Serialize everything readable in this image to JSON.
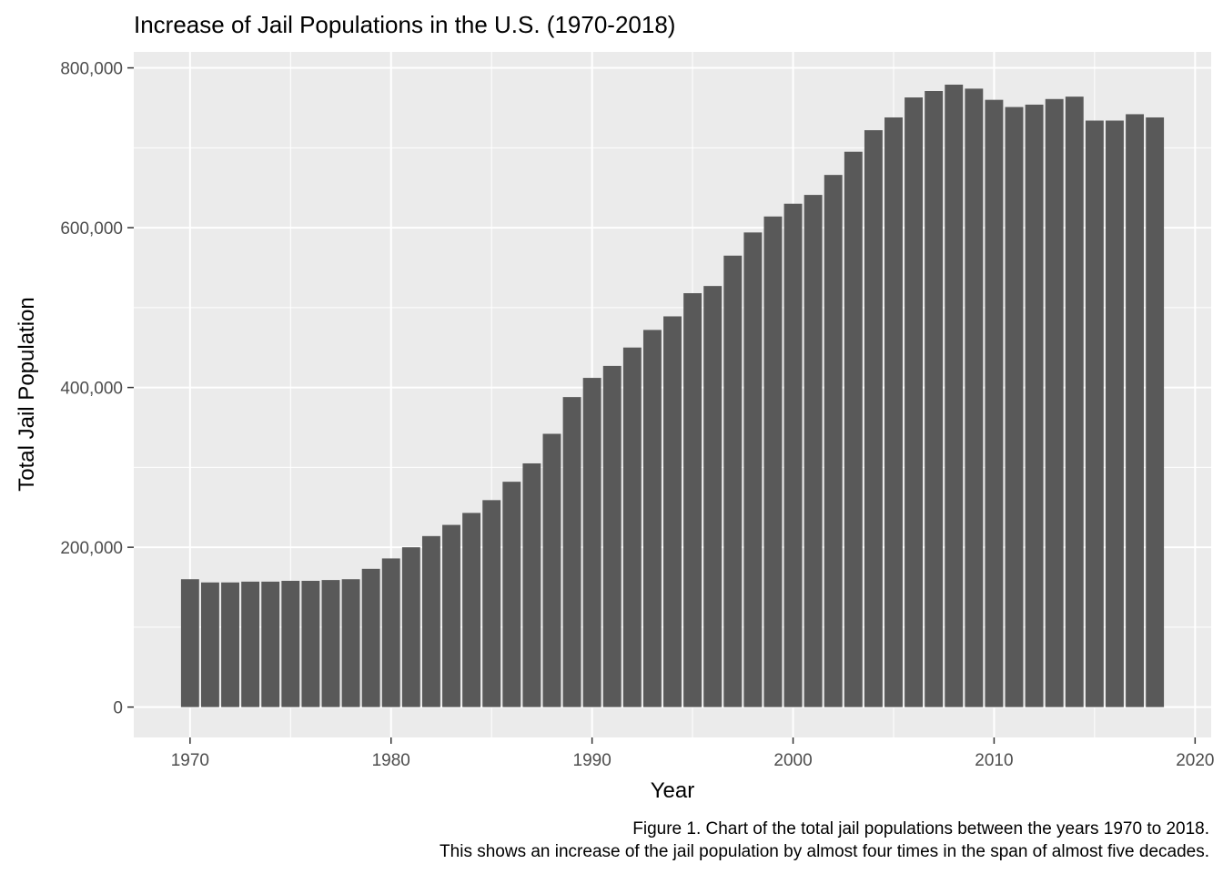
{
  "chart_data": {
    "type": "bar",
    "title": "Increase of Jail Populations in the U.S. (1970-2018)",
    "xlabel": "Year",
    "ylabel": "Total Jail Population",
    "caption": [
      "Figure 1. Chart of the total jail populations between the years 1970 to 2018.",
      "This shows an increase of the jail population by almost four times in the span of almost five decades."
    ],
    "xlim": [
      1967.2,
      2020.8
    ],
    "ylim": [
      -38000,
      820000
    ],
    "x_ticks": [
      1970,
      1980,
      1990,
      2000,
      2010,
      2020
    ],
    "x_tick_labels": [
      "1970",
      "1980",
      "1990",
      "2000",
      "2010",
      "2020"
    ],
    "y_ticks": [
      0,
      200000,
      400000,
      600000,
      800000
    ],
    "y_tick_labels": [
      "0",
      "200,000",
      "400,000",
      "600,000",
      "800,000"
    ],
    "grid": true,
    "colors": {
      "panel": "#ebebeb",
      "bar": "#595959",
      "grid_major": "#ffffff"
    },
    "x": [
      1970,
      1971,
      1972,
      1973,
      1974,
      1975,
      1976,
      1977,
      1978,
      1979,
      1980,
      1981,
      1982,
      1983,
      1984,
      1985,
      1986,
      1987,
      1988,
      1989,
      1990,
      1991,
      1992,
      1993,
      1994,
      1995,
      1996,
      1997,
      1998,
      1999,
      2000,
      2001,
      2002,
      2003,
      2004,
      2005,
      2006,
      2007,
      2008,
      2009,
      2010,
      2011,
      2012,
      2013,
      2014,
      2015,
      2016,
      2017,
      2018
    ],
    "values": [
      160000,
      156000,
      156000,
      157000,
      157000,
      158000,
      158000,
      159000,
      160000,
      173000,
      186000,
      200000,
      214000,
      228000,
      243000,
      259000,
      282000,
      305000,
      342000,
      388000,
      412000,
      427000,
      450000,
      472000,
      489000,
      518000,
      527000,
      565000,
      594000,
      614000,
      630000,
      641000,
      666000,
      695000,
      722000,
      738000,
      763000,
      771000,
      779000,
      774000,
      760000,
      751000,
      754000,
      761000,
      764000,
      734000,
      734000,
      742000,
      738000
    ]
  }
}
